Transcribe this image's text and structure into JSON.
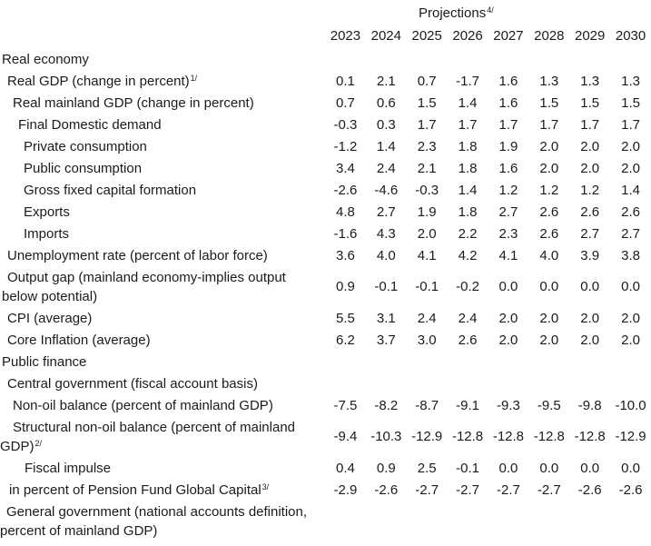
{
  "colors": {
    "background": "#ffffff",
    "text": "#1b1b1b"
  },
  "table": {
    "header": {
      "projections_label": "Projections",
      "projections_sup": "4/"
    },
    "years": [
      "2023",
      "2024",
      "2025",
      "2026",
      "2027",
      "2028",
      "2029",
      "2030"
    ],
    "rows": [
      {
        "label": "Real economy",
        "sup": "",
        "indent": 2,
        "hang": 2,
        "values": []
      },
      {
        "label": "Real GDP (change in percent)",
        "sup": "1/",
        "indent": 8,
        "hang": 8,
        "values": [
          "0.1",
          "2.1",
          "0.7",
          "-1.7",
          "1.6",
          "1.3",
          "1.3",
          "1.3"
        ]
      },
      {
        "label": "Real mainland GDP (change in percent)",
        "sup": "",
        "indent": 14,
        "hang": 14,
        "values": [
          "0.7",
          "0.6",
          "1.5",
          "1.4",
          "1.6",
          "1.5",
          "1.5",
          "1.5"
        ]
      },
      {
        "label": "Final Domestic demand",
        "sup": "",
        "indent": 20,
        "hang": 20,
        "values": [
          "-0.3",
          "0.3",
          "1.7",
          "1.7",
          "1.7",
          "1.7",
          "1.7",
          "1.7"
        ]
      },
      {
        "label": "Private consumption",
        "sup": "",
        "indent": 26,
        "hang": 26,
        "values": [
          "-1.2",
          "1.4",
          "2.3",
          "1.8",
          "1.9",
          "2.0",
          "2.0",
          "2.0"
        ]
      },
      {
        "label": "Public consumption",
        "sup": "",
        "indent": 26,
        "hang": 26,
        "values": [
          "3.4",
          "2.4",
          "2.1",
          "1.8",
          "1.6",
          "2.0",
          "2.0",
          "2.0"
        ]
      },
      {
        "label": "Gross fixed capital formation",
        "sup": "",
        "indent": 26,
        "hang": 26,
        "values": [
          "-2.6",
          "-4.6",
          "-0.3",
          "1.4",
          "1.2",
          "1.2",
          "1.2",
          "1.4"
        ]
      },
      {
        "label": "Exports",
        "sup": "",
        "indent": 26,
        "hang": 26,
        "values": [
          "4.8",
          "2.7",
          "1.9",
          "1.8",
          "2.7",
          "2.6",
          "2.6",
          "2.6"
        ]
      },
      {
        "label": "Imports",
        "sup": "",
        "indent": 26,
        "hang": 26,
        "values": [
          "-1.6",
          "4.3",
          "2.0",
          "2.2",
          "2.3",
          "2.6",
          "2.7",
          "2.7"
        ]
      },
      {
        "label": "Unemployment rate (percent of labor force)",
        "sup": "",
        "indent": 8,
        "hang": 8,
        "values": [
          "3.6",
          "4.0",
          "4.1",
          "4.2",
          "4.1",
          "4.0",
          "3.9",
          "3.8"
        ]
      },
      {
        "label": "Output gap (mainland economy-implies output below potential)",
        "sup": "",
        "indent": 8,
        "hang": 2,
        "values": [
          "0.9",
          "-0.1",
          "-0.1",
          "-0.2",
          "0.0",
          "0.0",
          "0.0",
          "0.0"
        ]
      },
      {
        "label": "CPI (average)",
        "sup": "",
        "indent": 8,
        "hang": 8,
        "values": [
          "5.5",
          "3.1",
          "2.4",
          "2.4",
          "2.0",
          "2.0",
          "2.0",
          "2.0"
        ]
      },
      {
        "label": "Core Inflation (average)",
        "sup": "",
        "indent": 8,
        "hang": 8,
        "values": [
          "6.2",
          "3.7",
          "3.0",
          "2.6",
          "2.0",
          "2.0",
          "2.0",
          "2.0"
        ]
      },
      {
        "label": "Public finance",
        "sup": "",
        "indent": 2,
        "hang": 2,
        "values": []
      },
      {
        "label": "Central government (fiscal account basis)",
        "sup": "",
        "indent": 8,
        "hang": 8,
        "values": []
      },
      {
        "label": "Non-oil balance (percent of mainland GDP)",
        "sup": "",
        "indent": 14,
        "hang": 14,
        "values": [
          "-7.5",
          "-8.2",
          "-8.7",
          "-9.1",
          "-9.3",
          "-9.5",
          "-9.8",
          "-10.0"
        ]
      },
      {
        "label": "Structural non-oil balance (percent of mainland GDP)",
        "sup": "2/",
        "indent": 14,
        "hang": 0,
        "values": [
          "-9.4",
          "-10.3",
          "-12.9",
          "-12.8",
          "-12.8",
          "-12.8",
          "-12.8",
          "-12.9"
        ]
      },
      {
        "label": "Fiscal impulse",
        "sup": "",
        "indent": 27,
        "hang": 27,
        "values": [
          "0.4",
          "0.9",
          "2.5",
          "-0.1",
          "0.0",
          "0.0",
          "0.0",
          "0.0"
        ]
      },
      {
        "label": "in percent of Pension Fund Global Capital",
        "sup": "3/",
        "indent": 10,
        "hang": 10,
        "values": [
          "-2.9",
          "-2.6",
          "-2.7",
          "-2.7",
          "-2.7",
          "-2.7",
          "-2.6",
          "-2.6"
        ]
      },
      {
        "label": "General government (national accounts definition, percent of mainland GDP)",
        "sup": "",
        "indent": 7,
        "hang": 0,
        "values": []
      }
    ]
  }
}
